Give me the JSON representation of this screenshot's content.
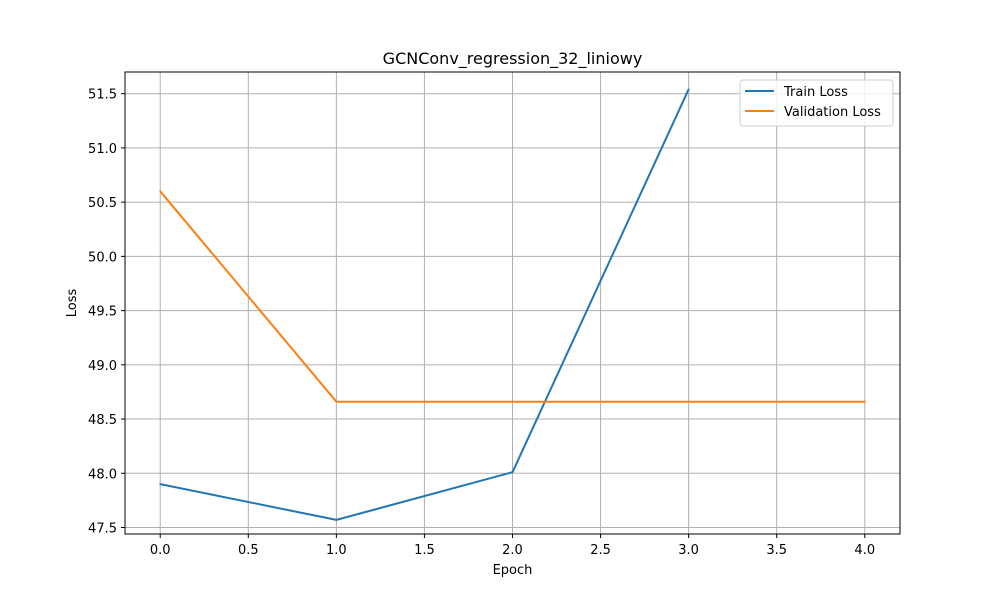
{
  "chart_data": {
    "type": "line",
    "title": "GCNConv_regression_32_liniowy",
    "xlabel": "Epoch",
    "ylabel": "Loss",
    "xlim": [
      -0.2,
      4.2
    ],
    "ylim": [
      47.44,
      51.7
    ],
    "xticks": [
      0.0,
      0.5,
      1.0,
      1.5,
      2.0,
      2.5,
      3.0,
      3.5,
      4.0
    ],
    "xtick_labels": [
      "0.0",
      "0.5",
      "1.0",
      "1.5",
      "2.0",
      "2.5",
      "3.0",
      "3.5",
      "4.0"
    ],
    "yticks": [
      47.5,
      48.0,
      48.5,
      49.0,
      49.5,
      50.0,
      50.5,
      51.0,
      51.5
    ],
    "ytick_labels": [
      "47.5",
      "48.0",
      "48.5",
      "49.0",
      "49.5",
      "50.0",
      "50.5",
      "51.0",
      "51.5"
    ],
    "grid": true,
    "legend_position": "top-right",
    "series": [
      {
        "name": "Train Loss",
        "color": "#1f77b4",
        "x": [
          0,
          1,
          2,
          3
        ],
        "y": [
          47.9,
          47.57,
          48.01,
          51.54
        ]
      },
      {
        "name": "Validation Loss",
        "color": "#ff7f0e",
        "x": [
          0,
          1,
          2,
          3,
          4
        ],
        "y": [
          50.6,
          48.66,
          48.66,
          48.66,
          48.66
        ]
      }
    ]
  }
}
